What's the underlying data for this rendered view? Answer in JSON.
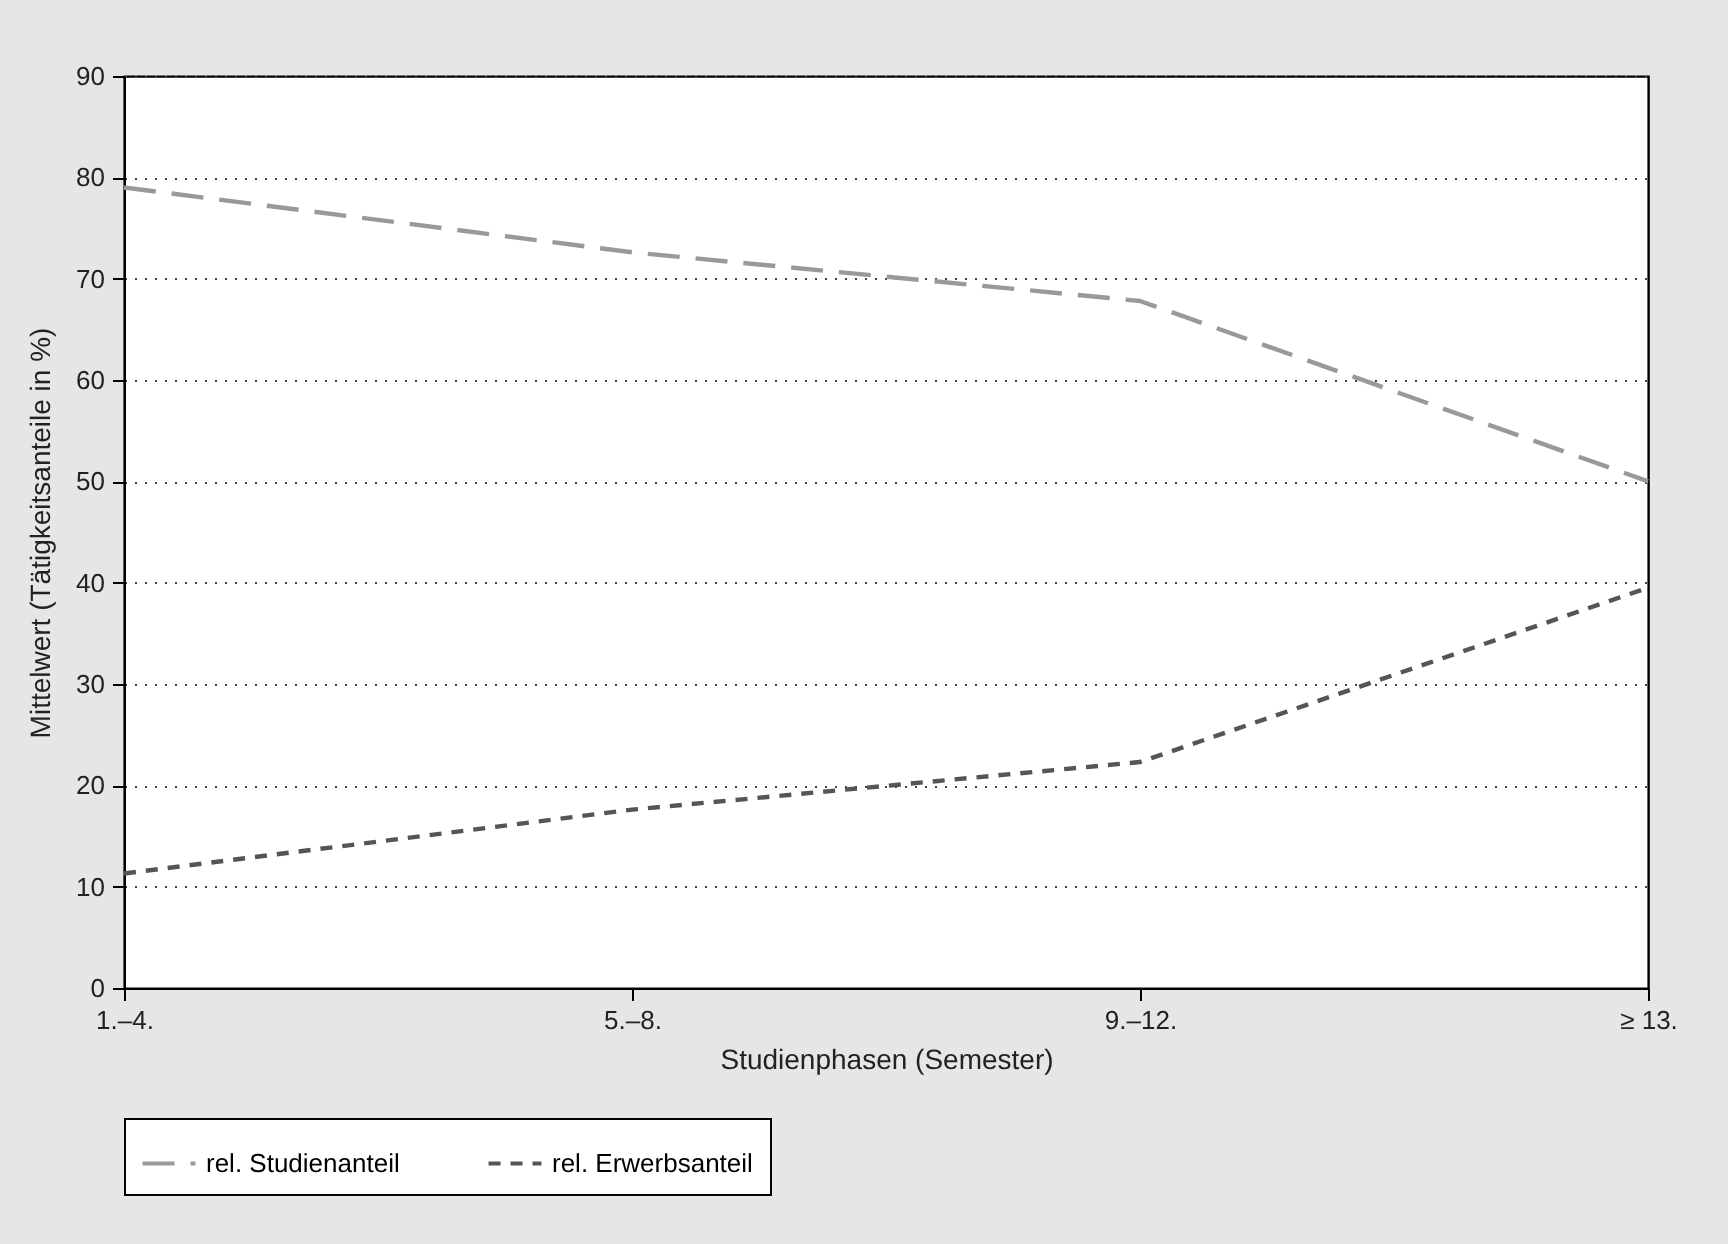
{
  "chart_data": {
    "type": "line",
    "xlabel": "Studienphasen (Semester)",
    "ylabel": "Mittelwert (Tätigkeitsanteile in %)",
    "categories": [
      "1.–4.",
      "5.–8.",
      "9.–12.",
      "≥ 13."
    ],
    "series": [
      {
        "name": "rel. Studienanteil",
        "color": "#999999",
        "line_style": "dashed",
        "values": [
          79,
          72.6,
          67.8,
          50
        ]
      },
      {
        "name": "rel. Erwerbsanteil",
        "color": "#555555",
        "line_style": "dashed",
        "values": [
          11.3,
          17.6,
          22.3,
          39.5
        ]
      }
    ],
    "ylim": [
      0,
      90
    ],
    "yticks": [
      0,
      10,
      20,
      30,
      40,
      50,
      60,
      70,
      80,
      90
    ],
    "grid": "y",
    "legend": "bottom",
    "marker": "none"
  }
}
